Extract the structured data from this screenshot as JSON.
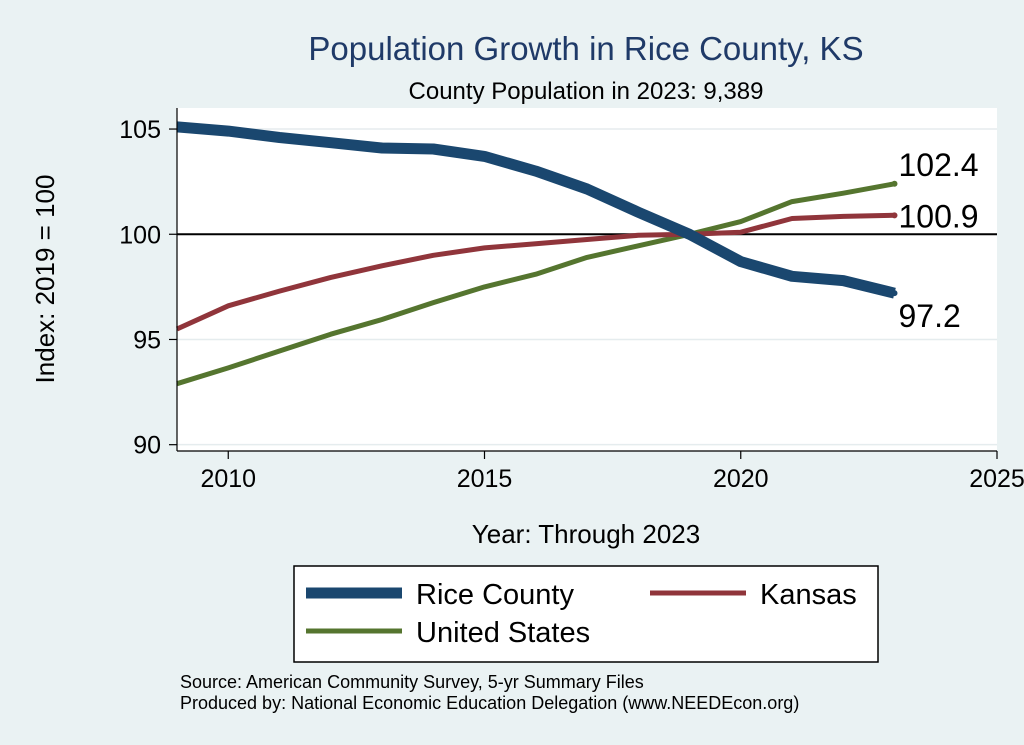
{
  "chart_data": {
    "type": "line",
    "title": "Population Growth in Rice County, KS",
    "subtitle": "County Population in 2023: 9,389",
    "xlabel": "Year: Through 2023",
    "ylabel": "Index: 2019 = 100",
    "xlim": [
      2009,
      2025
    ],
    "ylim": [
      89.7,
      106
    ],
    "xticks": [
      2010,
      2015,
      2020,
      2025
    ],
    "yticks": [
      90,
      95,
      100,
      105
    ],
    "x_tick_labels": [
      "2010",
      "2015",
      "2020",
      "2025"
    ],
    "y_tick_labels": [
      "90",
      "95",
      "100",
      "105"
    ],
    "reference_line": 100,
    "x": [
      2009,
      2010,
      2011,
      2012,
      2013,
      2014,
      2015,
      2016,
      2017,
      2018,
      2019,
      2020,
      2021,
      2022,
      2023
    ],
    "series": [
      {
        "name": "Rice  County",
        "color": "#1a476f",
        "values": [
          105.1,
          104.9,
          104.6,
          104.35,
          104.1,
          104.05,
          103.7,
          103.0,
          102.15,
          101.05,
          100.0,
          98.7,
          98.0,
          97.8,
          97.2
        ],
        "end_label": "97.2"
      },
      {
        "name": "Kansas",
        "color": "#90353b",
        "values": [
          95.5,
          96.6,
          97.3,
          97.95,
          98.5,
          99.0,
          99.35,
          99.55,
          99.75,
          99.95,
          100.0,
          100.1,
          100.75,
          100.85,
          100.9
        ],
        "end_label": "100.9"
      },
      {
        "name": "United States",
        "color": "#55752f",
        "values": [
          92.9,
          93.65,
          94.45,
          95.25,
          95.95,
          96.75,
          97.5,
          98.1,
          98.9,
          99.45,
          100.0,
          100.6,
          101.55,
          101.95,
          102.4
        ],
        "end_label": "102.4"
      }
    ],
    "legend_position": "bottom"
  },
  "legend": {
    "rice": "Rice  County",
    "kansas": "Kansas",
    "us": "United States"
  },
  "notes": {
    "source": "Source: American Community Survey, 5-yr Summary Files",
    "produced": "Produced by: National Economic Education Delegation (www.NEEDEcon.org)"
  }
}
